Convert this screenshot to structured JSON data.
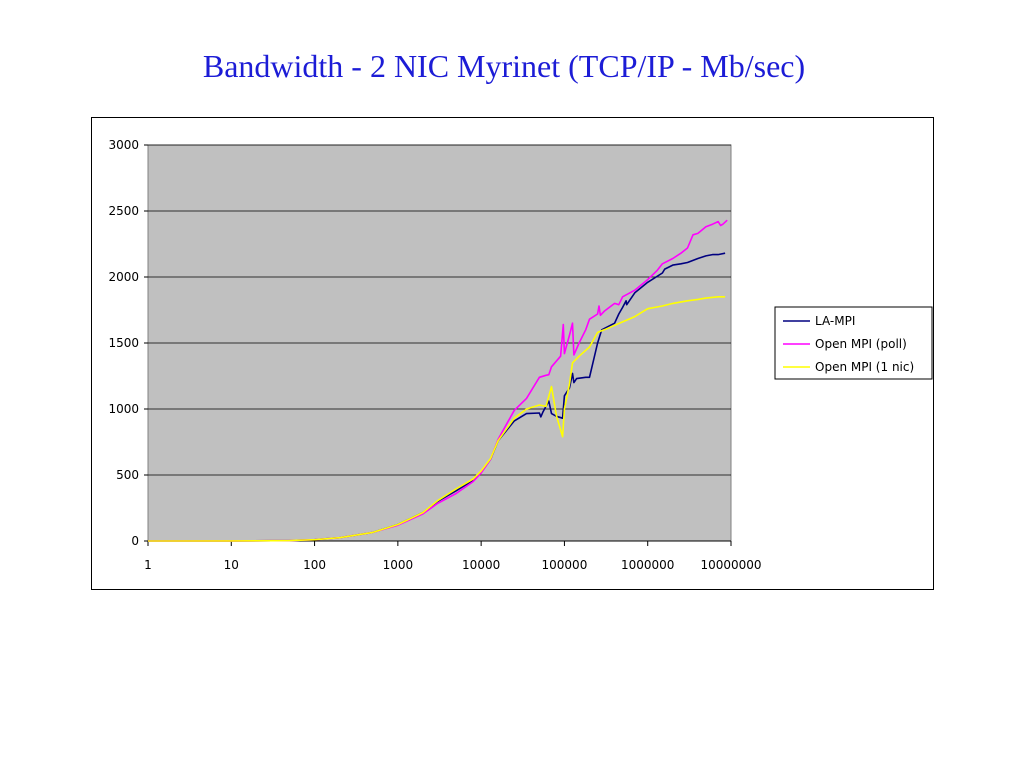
{
  "page": {
    "title": "Bandwidth - 2 NIC Myrinet (TCP/IP - Mb/sec)"
  },
  "chart_data": {
    "type": "line",
    "x_scale": "log",
    "xlim": [
      1,
      10000000
    ],
    "ylim": [
      0,
      3000
    ],
    "x_ticks": [
      "1",
      "10",
      "100",
      "1000",
      "10000",
      "100000",
      "1000000",
      "10000000"
    ],
    "y_ticks": [
      "0",
      "500",
      "1000",
      "1500",
      "2000",
      "2500",
      "3000"
    ],
    "grid": "horizontal",
    "plot_background": "#c0c0c0",
    "legend_position": "right",
    "series": [
      {
        "name": "LA-MPI",
        "color": "#000080",
        "points": [
          [
            1,
            0
          ],
          [
            10,
            1
          ],
          [
            50,
            3
          ],
          [
            100,
            10
          ],
          [
            200,
            25
          ],
          [
            500,
            65
          ],
          [
            1000,
            125
          ],
          [
            2000,
            215
          ],
          [
            3000,
            300
          ],
          [
            5000,
            380
          ],
          [
            8000,
            460
          ],
          [
            10000,
            520
          ],
          [
            13000,
            620
          ],
          [
            16000,
            760
          ],
          [
            25000,
            910
          ],
          [
            30000,
            940
          ],
          [
            35000,
            965
          ],
          [
            50000,
            970
          ],
          [
            52000,
            940
          ],
          [
            55000,
            975
          ],
          [
            65000,
            1060
          ],
          [
            70000,
            965
          ],
          [
            80000,
            945
          ],
          [
            95000,
            930
          ],
          [
            100000,
            1100
          ],
          [
            115000,
            1160
          ],
          [
            125000,
            1270
          ],
          [
            130000,
            1200
          ],
          [
            140000,
            1230
          ],
          [
            180000,
            1240
          ],
          [
            200000,
            1240
          ],
          [
            250000,
            1500
          ],
          [
            280000,
            1600
          ],
          [
            400000,
            1650
          ],
          [
            450000,
            1720
          ],
          [
            500000,
            1770
          ],
          [
            550000,
            1820
          ],
          [
            560000,
            1790
          ],
          [
            700000,
            1880
          ],
          [
            1000000,
            1960
          ],
          [
            1500000,
            2030
          ],
          [
            1600000,
            2060
          ],
          [
            2000000,
            2090
          ],
          [
            2500000,
            2100
          ],
          [
            3000000,
            2110
          ],
          [
            4000000,
            2140
          ],
          [
            5000000,
            2160
          ],
          [
            6000000,
            2170
          ],
          [
            7000000,
            2170
          ],
          [
            8500000,
            2180
          ]
        ]
      },
      {
        "name": "Open MPI (poll)",
        "color": "#ff00ff",
        "points": [
          [
            1,
            0
          ],
          [
            10,
            1
          ],
          [
            50,
            3
          ],
          [
            100,
            10
          ],
          [
            200,
            25
          ],
          [
            500,
            65
          ],
          [
            1000,
            120
          ],
          [
            2000,
            205
          ],
          [
            3000,
            285
          ],
          [
            5000,
            360
          ],
          [
            8000,
            450
          ],
          [
            10000,
            515
          ],
          [
            13000,
            620
          ],
          [
            16000,
            770
          ],
          [
            25000,
            990
          ],
          [
            35000,
            1080
          ],
          [
            50000,
            1240
          ],
          [
            60000,
            1255
          ],
          [
            65000,
            1260
          ],
          [
            70000,
            1320
          ],
          [
            90000,
            1400
          ],
          [
            97000,
            1640
          ],
          [
            100000,
            1420
          ],
          [
            115000,
            1560
          ],
          [
            125000,
            1650
          ],
          [
            130000,
            1410
          ],
          [
            150000,
            1500
          ],
          [
            180000,
            1600
          ],
          [
            200000,
            1680
          ],
          [
            250000,
            1720
          ],
          [
            260000,
            1780
          ],
          [
            270000,
            1710
          ],
          [
            300000,
            1740
          ],
          [
            400000,
            1800
          ],
          [
            450000,
            1790
          ],
          [
            500000,
            1850
          ],
          [
            700000,
            1900
          ],
          [
            1000000,
            1980
          ],
          [
            1300000,
            2050
          ],
          [
            1500000,
            2100
          ],
          [
            2000000,
            2140
          ],
          [
            2500000,
            2180
          ],
          [
            3000000,
            2220
          ],
          [
            3500000,
            2320
          ],
          [
            4000000,
            2330
          ],
          [
            5000000,
            2380
          ],
          [
            6000000,
            2400
          ],
          [
            7000000,
            2420
          ],
          [
            7500000,
            2390
          ],
          [
            8000000,
            2400
          ],
          [
            9000000,
            2430
          ]
        ]
      },
      {
        "name": "Open MPI (1 nic)",
        "color": "#ffff00",
        "points": [
          [
            1,
            0
          ],
          [
            10,
            1
          ],
          [
            50,
            3
          ],
          [
            100,
            10
          ],
          [
            200,
            25
          ],
          [
            500,
            65
          ],
          [
            1000,
            125
          ],
          [
            2000,
            215
          ],
          [
            3000,
            305
          ],
          [
            5000,
            395
          ],
          [
            8000,
            470
          ],
          [
            10000,
            530
          ],
          [
            13000,
            625
          ],
          [
            16000,
            760
          ],
          [
            25000,
            930
          ],
          [
            35000,
            1000
          ],
          [
            50000,
            1030
          ],
          [
            60000,
            1020
          ],
          [
            70000,
            1170
          ],
          [
            80000,
            950
          ],
          [
            95000,
            790
          ],
          [
            100000,
            1000
          ],
          [
            115000,
            1190
          ],
          [
            125000,
            1350
          ],
          [
            150000,
            1400
          ],
          [
            200000,
            1470
          ],
          [
            250000,
            1580
          ],
          [
            300000,
            1600
          ],
          [
            500000,
            1660
          ],
          [
            700000,
            1700
          ],
          [
            1000000,
            1760
          ],
          [
            1500000,
            1780
          ],
          [
            2000000,
            1800
          ],
          [
            3000000,
            1820
          ],
          [
            4000000,
            1830
          ],
          [
            5000000,
            1840
          ],
          [
            7000000,
            1850
          ],
          [
            8500000,
            1850
          ]
        ]
      }
    ]
  }
}
